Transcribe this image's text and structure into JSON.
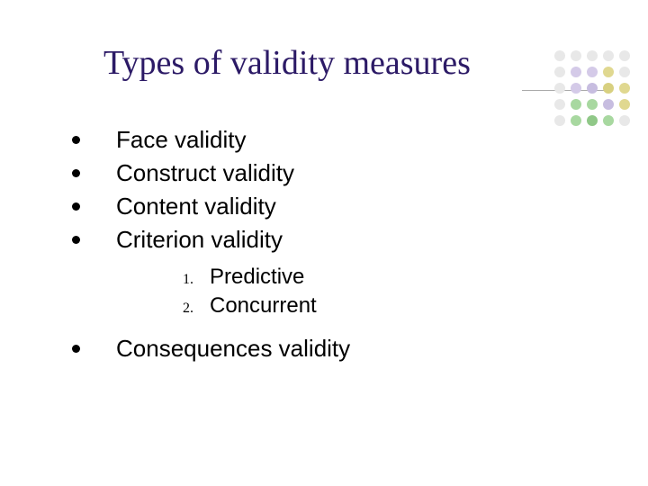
{
  "title": "Types of validity measures",
  "bullets_top": [
    "Face validity",
    "Construct validity",
    "Content validity",
    "Criterion validity"
  ],
  "numbered": [
    "Predictive",
    "Concurrent"
  ],
  "bullets_bottom": [
    "Consequences validity"
  ],
  "title_color": "#2c1a66",
  "text_color": "#000000",
  "title_fontsize": 38,
  "bullet_fontsize": 26,
  "num_fontsize": 24,
  "num_label_fontsize": 16,
  "dots_grid": {
    "rows": 5,
    "cols": 5,
    "spacing": 18,
    "dot_size": 12,
    "colors": [
      [
        "#e8e8e8",
        "#e8e8e8",
        "#e8e8e8",
        "#e8e8e8",
        "#e8e8e8"
      ],
      [
        "#e8e8e8",
        "#d4cae8",
        "#d4cae8",
        "#e0d890",
        "#e8e8e8"
      ],
      [
        "#e8e8e8",
        "#d4cae8",
        "#c7bde0",
        "#d8d080",
        "#e0d890"
      ],
      [
        "#e8e8e8",
        "#a8d8a0",
        "#a8d8a0",
        "#c7bde0",
        "#e0d890"
      ],
      [
        "#e8e8e8",
        "#a8d8a0",
        "#90c888",
        "#a8d8a0",
        "#e8e8e8"
      ]
    ]
  }
}
